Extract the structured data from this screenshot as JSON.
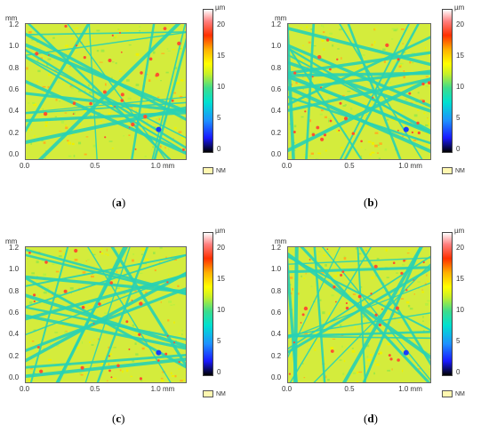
{
  "panels": [
    {
      "id": "a",
      "caption_letter": "a",
      "y_unit": "mm",
      "x_unit": "mm",
      "cbar_unit": "µm",
      "y_ticks": [
        "1.2",
        "1.0",
        "0.8",
        "0.6",
        "0.4",
        "0.2",
        "0.0"
      ],
      "x_ticks": [
        "0.0",
        "0.5",
        "1.0 mm"
      ],
      "cbar_ticks": [
        "20",
        "15",
        "10",
        "5",
        "0"
      ],
      "legend": "NM"
    },
    {
      "id": "b",
      "caption_letter": "b",
      "y_unit": "mm",
      "x_unit": "mm",
      "cbar_unit": "µm",
      "y_ticks": [
        "1.2",
        "1.0",
        "0.8",
        "0.6",
        "0.4",
        "0.2",
        "0.0"
      ],
      "x_ticks": [
        "0.0",
        "0.5",
        "1.0 mm"
      ],
      "cbar_ticks": [
        "20",
        "15",
        "10",
        "5",
        "0"
      ],
      "legend": "NM"
    },
    {
      "id": "c",
      "caption_letter": "c",
      "y_unit": "mm",
      "x_unit": "mm",
      "cbar_unit": "µm",
      "y_ticks": [
        "1.2",
        "1.0",
        "0.8",
        "0.6",
        "0.4",
        "0.2",
        "0.0"
      ],
      "x_ticks": [
        "0.0",
        "0.5",
        "1.0 mm"
      ],
      "cbar_ticks": [
        "20",
        "15",
        "10",
        "5",
        "0"
      ],
      "legend": "NM"
    },
    {
      "id": "d",
      "caption_letter": "d",
      "y_unit": "mm",
      "x_unit": "mm",
      "cbar_unit": "µm",
      "y_ticks": [
        "1.2",
        "1.0",
        "0.8",
        "0.6",
        "0.4",
        "0.2",
        "0.0"
      ],
      "x_ticks": [
        "0.0",
        "0.5",
        "1.0 mm"
      ],
      "cbar_ticks": [
        "20",
        "15",
        "10",
        "5",
        "0"
      ],
      "legend": "NM"
    }
  ],
  "colors": {
    "background": "#d4ec3c",
    "grooves": "#28d2b4",
    "deep": "#1a3cff",
    "peaks": "#ff5030",
    "nm": "#fff7b0"
  }
}
